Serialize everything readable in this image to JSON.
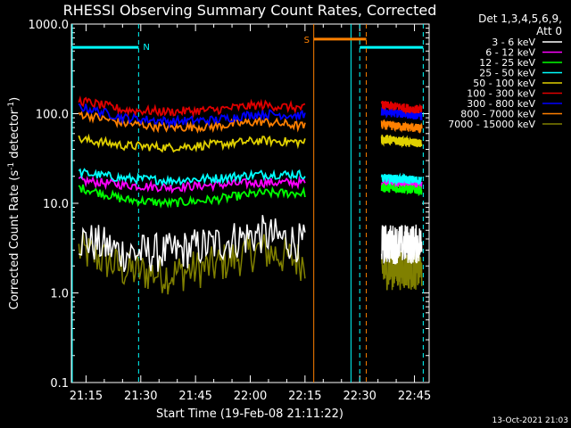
{
  "chart_data": {
    "type": "line",
    "title": "RHESSI Observing Summary Count Rates, Corrected",
    "xlabel": "Start Time (19-Feb-08 21:11:22)",
    "ylabel_main": "Corrected Count Rate (s",
    "ylabel_sup1": "-1",
    "ylabel_mid": " detector",
    "ylabel_sup2": "-1",
    "ylabel_end": ")",
    "yscale": "log",
    "ylim": [
      0.1,
      1000
    ],
    "xlim_minutes": [
      21.183,
      22.817
    ],
    "x_ticks": [
      "21:15",
      "21:30",
      "21:45",
      "22:00",
      "22:15",
      "22:30",
      "22:45"
    ],
    "y_ticks": [
      "0.1",
      "1.0",
      "10.0",
      "100.0",
      "1000.0"
    ],
    "detector_label": "Det 1,3,4,5,6,9,",
    "attenuator_label": "Att 0",
    "timestamp": "13-Oct-2021 21:03",
    "flags": [
      {
        "label": "N",
        "color": "#00ffff"
      },
      {
        "label": "S",
        "color": "#ff8000"
      }
    ],
    "series": [
      {
        "name": "3 - 6 keV",
        "color": "#ffffff"
      },
      {
        "name": "6 - 12 keV",
        "color": "#ff00ff"
      },
      {
        "name": "12 - 25 keV",
        "color": "#00ff00"
      },
      {
        "name": "25 - 50 keV",
        "color": "#00ffff"
      },
      {
        "name": "50 - 100 keV",
        "color": "#e0d000"
      },
      {
        "name": "100 - 300 keV",
        "color": "#e00000"
      },
      {
        "name": "300 - 800 keV",
        "color": "#0000ff"
      },
      {
        "name": "800 - 7000 keV",
        "color": "#ff8000"
      },
      {
        "name": "7000 - 15000 keV",
        "color": "#808000"
      }
    ],
    "segments": [
      {
        "start": "21:13",
        "end": "22:15",
        "values": {
          "100 - 300 keV": [
            140,
            110,
            105,
            110,
            125,
            115
          ],
          "300 - 800 keV": [
            120,
            90,
            82,
            85,
            100,
            95
          ],
          "800 - 7000 keV": [
            100,
            78,
            70,
            72,
            82,
            72
          ],
          "50 - 100 keV": [
            52,
            44,
            42,
            45,
            50,
            48
          ],
          "25 - 50 keV": [
            22,
            19,
            18,
            19,
            21,
            21
          ],
          "6 - 12 keV": [
            18,
            16,
            15,
            16,
            17,
            17
          ],
          "12 - 25 keV": [
            15,
            11,
            10,
            11,
            13,
            13
          ],
          "3 - 6 keV": [
            4,
            2.8,
            2.8,
            3.5,
            4.5,
            3.5
          ],
          "7000 - 15000 keV": [
            3,
            1.8,
            1.6,
            2,
            3,
            2.2
          ]
        }
      },
      {
        "start": "22:36",
        "end": "22:47",
        "values": {
          "100 - 300 keV": [
            125,
            110
          ],
          "300 - 800 keV": [
            105,
            95
          ],
          "800 - 7000 keV": [
            75,
            68
          ],
          "50 - 100 keV": [
            52,
            46
          ],
          "25 - 50 keV": [
            19,
            18
          ],
          "6 - 12 keV": [
            17,
            16
          ],
          "12 - 25 keV": [
            15,
            14
          ],
          "3 - 6 keV": [
            3.5,
            3.5
          ],
          "7000 - 15000 keV": [
            1.8,
            1.8
          ]
        }
      }
    ]
  }
}
